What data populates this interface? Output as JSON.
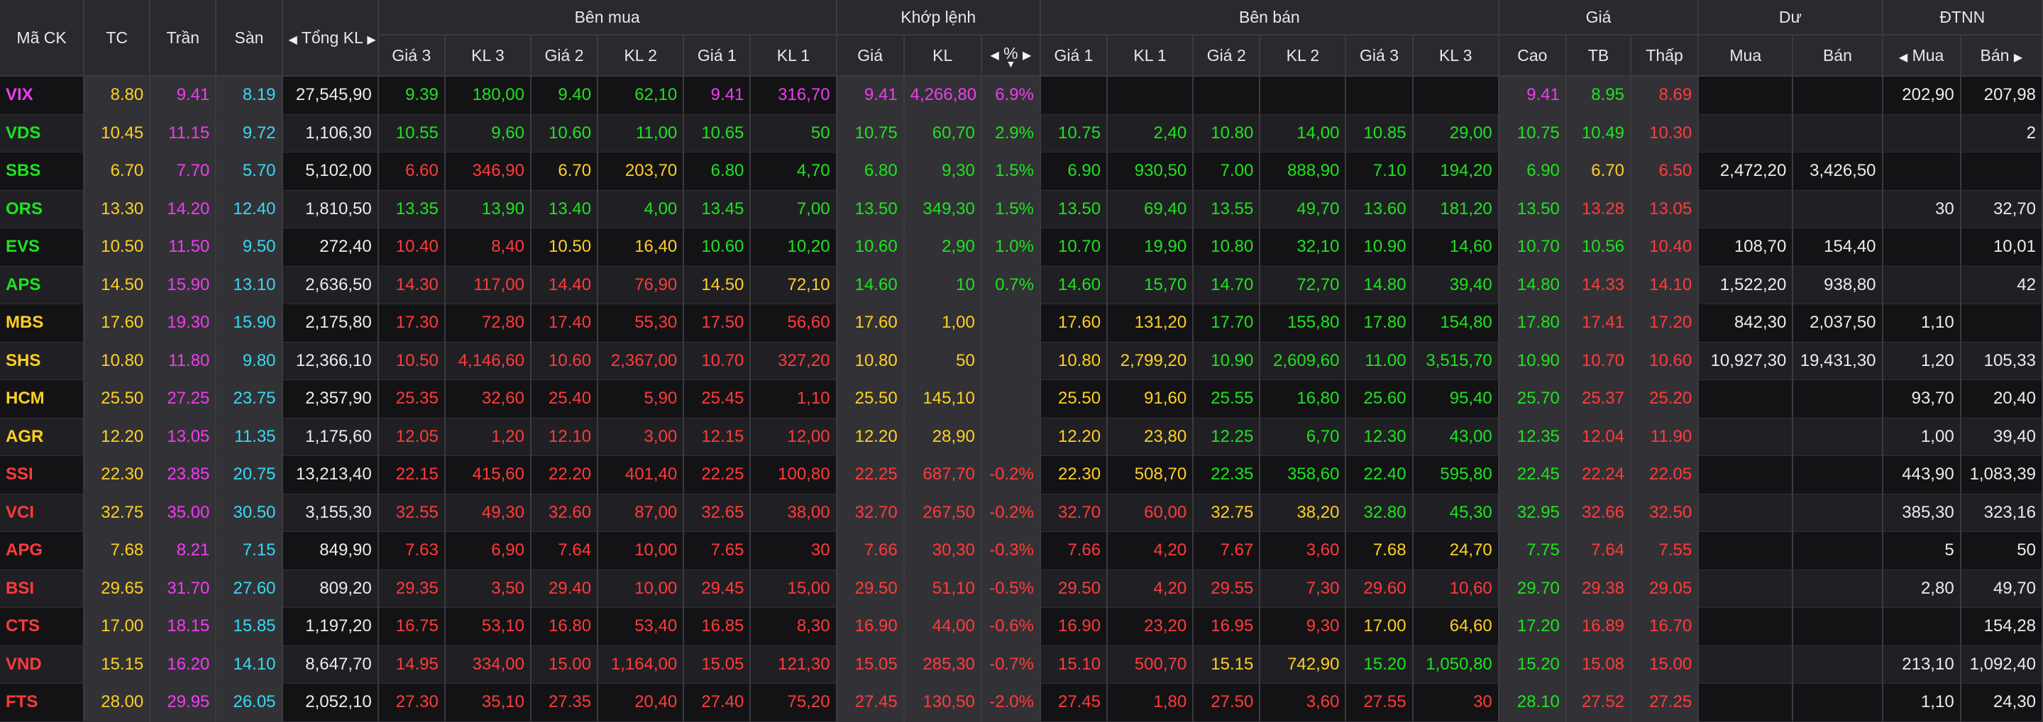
{
  "header": {
    "groups": {
      "symbol": "Mã CK",
      "ref": "TC",
      "ceil": "Trần",
      "floor": "Sàn",
      "total_vol": "Tổng KL",
      "buy": "Bên mua",
      "match": "Khớp lệnh",
      "sell": "Bên bán",
      "price": "Giá",
      "remain": "Dư",
      "foreign": "ĐTNN"
    },
    "buy_cols": [
      "Giá 3",
      "KL 3",
      "Giá 2",
      "KL 2",
      "Giá 1",
      "KL 1"
    ],
    "match_cols": [
      "Giá",
      "KL",
      "%"
    ],
    "sell_cols": [
      "Giá 1",
      "KL 1",
      "Giá 2",
      "KL 2",
      "Giá 3",
      "KL 3"
    ],
    "price_cols": [
      "Cao",
      "TB",
      "Thấp"
    ],
    "remain_cols": [
      "Mua",
      "Bán"
    ],
    "foreign_cols": [
      "Mua",
      "Bán"
    ]
  },
  "colors": {
    "up": "#1ee31e",
    "down": "#ff3b3b",
    "ref": "#ffcf24",
    "ceiling": "#f03cf0",
    "floor": "#38d8f0"
  },
  "rows": [
    {
      "symbol": "VIX",
      "ref": "8.80",
      "ceil": "9.41",
      "floor": "8.19",
      "total": "27,545,90",
      "buy": [
        "9.39",
        "180,00",
        "9.40",
        "62,10",
        "9.41",
        "316,70"
      ],
      "match": [
        "9.41",
        "4,266,80",
        "6.9%"
      ],
      "sell": [
        "",
        "",
        "",
        "",
        "",
        ""
      ],
      "hl": [
        "9.41",
        "8.95",
        "8.69"
      ],
      "remain": [
        "",
        ""
      ],
      "foreign": [
        "202,90",
        "207,98"
      ],
      "c": {
        "sym": "purple",
        "buy": [
          "green",
          "green",
          "green",
          "green",
          "purple",
          "purple"
        ],
        "match": [
          "purple",
          "purple",
          "purple"
        ],
        "sell": [
          "white",
          "white",
          "white",
          "white",
          "white",
          "white"
        ],
        "hl": [
          "purple",
          "green",
          "red"
        ]
      }
    },
    {
      "symbol": "VDS",
      "ref": "10.45",
      "ceil": "11.15",
      "floor": "9.72",
      "total": "1,106,30",
      "buy": [
        "10.55",
        "9,60",
        "10.60",
        "11,00",
        "10.65",
        "50"
      ],
      "match": [
        "10.75",
        "60,70",
        "2.9%"
      ],
      "sell": [
        "10.75",
        "2,40",
        "10.80",
        "14,00",
        "10.85",
        "29,00"
      ],
      "hl": [
        "10.75",
        "10.49",
        "10.30"
      ],
      "remain": [
        "",
        ""
      ],
      "foreign": [
        "",
        "2"
      ],
      "c": {
        "sym": "green",
        "buy": [
          "green",
          "green",
          "green",
          "green",
          "green",
          "green"
        ],
        "match": [
          "green",
          "green",
          "green"
        ],
        "sell": [
          "green",
          "green",
          "green",
          "green",
          "green",
          "green"
        ],
        "hl": [
          "green",
          "green",
          "red"
        ]
      }
    },
    {
      "symbol": "SBS",
      "ref": "6.70",
      "ceil": "7.70",
      "floor": "5.70",
      "total": "5,102,00",
      "buy": [
        "6.60",
        "346,90",
        "6.70",
        "203,70",
        "6.80",
        "4,70"
      ],
      "match": [
        "6.80",
        "9,30",
        "1.5%"
      ],
      "sell": [
        "6.90",
        "930,50",
        "7.00",
        "888,90",
        "7.10",
        "194,20"
      ],
      "hl": [
        "6.90",
        "6.70",
        "6.50"
      ],
      "remain": [
        "2,472,20",
        "3,426,50"
      ],
      "foreign": [
        "",
        ""
      ],
      "c": {
        "sym": "green",
        "buy": [
          "red",
          "red",
          "yellow",
          "yellow",
          "green",
          "green"
        ],
        "match": [
          "green",
          "green",
          "green"
        ],
        "sell": [
          "green",
          "green",
          "green",
          "green",
          "green",
          "green"
        ],
        "hl": [
          "green",
          "yellow",
          "red"
        ]
      }
    },
    {
      "symbol": "ORS",
      "ref": "13.30",
      "ceil": "14.20",
      "floor": "12.40",
      "total": "1,810,50",
      "buy": [
        "13.35",
        "13,90",
        "13.40",
        "4,00",
        "13.45",
        "7,00"
      ],
      "match": [
        "13.50",
        "349,30",
        "1.5%"
      ],
      "sell": [
        "13.50",
        "69,40",
        "13.55",
        "49,70",
        "13.60",
        "181,20"
      ],
      "hl": [
        "13.50",
        "13.28",
        "13.05"
      ],
      "remain": [
        "",
        ""
      ],
      "foreign": [
        "30",
        "32,70"
      ],
      "c": {
        "sym": "green",
        "buy": [
          "green",
          "green",
          "green",
          "green",
          "green",
          "green"
        ],
        "match": [
          "green",
          "green",
          "green"
        ],
        "sell": [
          "green",
          "green",
          "green",
          "green",
          "green",
          "green"
        ],
        "hl": [
          "green",
          "red",
          "red"
        ]
      }
    },
    {
      "symbol": "EVS",
      "ref": "10.50",
      "ceil": "11.50",
      "floor": "9.50",
      "total": "272,40",
      "buy": [
        "10.40",
        "8,40",
        "10.50",
        "16,40",
        "10.60",
        "10,20"
      ],
      "match": [
        "10.60",
        "2,90",
        "1.0%"
      ],
      "sell": [
        "10.70",
        "19,90",
        "10.80",
        "32,10",
        "10.90",
        "14,60"
      ],
      "hl": [
        "10.70",
        "10.56",
        "10.40"
      ],
      "remain": [
        "108,70",
        "154,40"
      ],
      "foreign": [
        "",
        "10,01"
      ],
      "c": {
        "sym": "green",
        "buy": [
          "red",
          "red",
          "yellow",
          "yellow",
          "green",
          "green"
        ],
        "match": [
          "green",
          "green",
          "green"
        ],
        "sell": [
          "green",
          "green",
          "green",
          "green",
          "green",
          "green"
        ],
        "hl": [
          "green",
          "green",
          "red"
        ]
      }
    },
    {
      "symbol": "APS",
      "ref": "14.50",
      "ceil": "15.90",
      "floor": "13.10",
      "total": "2,636,50",
      "buy": [
        "14.30",
        "117,00",
        "14.40",
        "76,90",
        "14.50",
        "72,10"
      ],
      "match": [
        "14.60",
        "10",
        "0.7%"
      ],
      "sell": [
        "14.60",
        "15,70",
        "14.70",
        "72,70",
        "14.80",
        "39,40"
      ],
      "hl": [
        "14.80",
        "14.33",
        "14.10"
      ],
      "remain": [
        "1,522,20",
        "938,80"
      ],
      "foreign": [
        "",
        "42"
      ],
      "c": {
        "sym": "green",
        "buy": [
          "red",
          "red",
          "red",
          "red",
          "yellow",
          "yellow"
        ],
        "match": [
          "green",
          "green",
          "green"
        ],
        "sell": [
          "green",
          "green",
          "green",
          "green",
          "green",
          "green"
        ],
        "hl": [
          "green",
          "red",
          "red"
        ]
      }
    },
    {
      "symbol": "MBS",
      "ref": "17.60",
      "ceil": "19.30",
      "floor": "15.90",
      "total": "2,175,80",
      "buy": [
        "17.30",
        "72,80",
        "17.40",
        "55,30",
        "17.50",
        "56,60"
      ],
      "match": [
        "17.60",
        "1,00",
        ""
      ],
      "sell": [
        "17.60",
        "131,20",
        "17.70",
        "155,80",
        "17.80",
        "154,80"
      ],
      "hl": [
        "17.80",
        "17.41",
        "17.20"
      ],
      "remain": [
        "842,30",
        "2,037,50"
      ],
      "foreign": [
        "1,10",
        ""
      ],
      "c": {
        "sym": "yellow",
        "buy": [
          "red",
          "red",
          "red",
          "red",
          "red",
          "red"
        ],
        "match": [
          "yellow",
          "yellow",
          "yellow"
        ],
        "sell": [
          "yellow",
          "yellow",
          "green",
          "green",
          "green",
          "green"
        ],
        "hl": [
          "green",
          "red",
          "red"
        ]
      }
    },
    {
      "symbol": "SHS",
      "ref": "10.80",
      "ceil": "11.80",
      "floor": "9.80",
      "total": "12,366,10",
      "buy": [
        "10.50",
        "4,146,60",
        "10.60",
        "2,367,00",
        "10.70",
        "327,20"
      ],
      "match": [
        "10.80",
        "50",
        ""
      ],
      "sell": [
        "10.80",
        "2,799,20",
        "10.90",
        "2,609,60",
        "11.00",
        "3,515,70"
      ],
      "hl": [
        "10.90",
        "10.70",
        "10.60"
      ],
      "remain": [
        "10,927,30",
        "19,431,30"
      ],
      "foreign": [
        "1,20",
        "105,33"
      ],
      "c": {
        "sym": "yellow",
        "buy": [
          "red",
          "red",
          "red",
          "red",
          "red",
          "red"
        ],
        "match": [
          "yellow",
          "yellow",
          "yellow"
        ],
        "sell": [
          "yellow",
          "yellow",
          "green",
          "green",
          "green",
          "green"
        ],
        "hl": [
          "green",
          "red",
          "red"
        ]
      }
    },
    {
      "symbol": "HCM",
      "ref": "25.50",
      "ceil": "27.25",
      "floor": "23.75",
      "total": "2,357,90",
      "buy": [
        "25.35",
        "32,60",
        "25.40",
        "5,90",
        "25.45",
        "1,10"
      ],
      "match": [
        "25.50",
        "145,10",
        ""
      ],
      "sell": [
        "25.50",
        "91,60",
        "25.55",
        "16,80",
        "25.60",
        "95,40"
      ],
      "hl": [
        "25.70",
        "25.37",
        "25.20"
      ],
      "remain": [
        "",
        ""
      ],
      "foreign": [
        "93,70",
        "20,40"
      ],
      "c": {
        "sym": "yellow",
        "buy": [
          "red",
          "red",
          "red",
          "red",
          "red",
          "red"
        ],
        "match": [
          "yellow",
          "yellow",
          "yellow"
        ],
        "sell": [
          "yellow",
          "yellow",
          "green",
          "green",
          "green",
          "green"
        ],
        "hl": [
          "green",
          "red",
          "red"
        ]
      }
    },
    {
      "symbol": "AGR",
      "ref": "12.20",
      "ceil": "13.05",
      "floor": "11.35",
      "total": "1,175,60",
      "buy": [
        "12.05",
        "1,20",
        "12.10",
        "3,00",
        "12.15",
        "12,00"
      ],
      "match": [
        "12.20",
        "28,90",
        ""
      ],
      "sell": [
        "12.20",
        "23,80",
        "12.25",
        "6,70",
        "12.30",
        "43,00"
      ],
      "hl": [
        "12.35",
        "12.04",
        "11.90"
      ],
      "remain": [
        "",
        ""
      ],
      "foreign": [
        "1,00",
        "39,40"
      ],
      "c": {
        "sym": "yellow",
        "buy": [
          "red",
          "red",
          "red",
          "red",
          "red",
          "red"
        ],
        "match": [
          "yellow",
          "yellow",
          "yellow"
        ],
        "sell": [
          "yellow",
          "yellow",
          "green",
          "green",
          "green",
          "green"
        ],
        "hl": [
          "green",
          "red",
          "red"
        ]
      }
    },
    {
      "symbol": "SSI",
      "ref": "22.30",
      "ceil": "23.85",
      "floor": "20.75",
      "total": "13,213,40",
      "buy": [
        "22.15",
        "415,60",
        "22.20",
        "401,40",
        "22.25",
        "100,80"
      ],
      "match": [
        "22.25",
        "687,70",
        "-0.2%"
      ],
      "sell": [
        "22.30",
        "508,70",
        "22.35",
        "358,60",
        "22.40",
        "595,80"
      ],
      "hl": [
        "22.45",
        "22.24",
        "22.05"
      ],
      "remain": [
        "",
        ""
      ],
      "foreign": [
        "443,90",
        "1,083,39"
      ],
      "c": {
        "sym": "red",
        "buy": [
          "red",
          "red",
          "red",
          "red",
          "red",
          "red"
        ],
        "match": [
          "red",
          "red",
          "red"
        ],
        "sell": [
          "yellow",
          "yellow",
          "green",
          "green",
          "green",
          "green"
        ],
        "hl": [
          "green",
          "red",
          "red"
        ]
      }
    },
    {
      "symbol": "VCI",
      "ref": "32.75",
      "ceil": "35.00",
      "floor": "30.50",
      "total": "3,155,30",
      "buy": [
        "32.55",
        "49,30",
        "32.60",
        "87,00",
        "32.65",
        "38,00"
      ],
      "match": [
        "32.70",
        "267,50",
        "-0.2%"
      ],
      "sell": [
        "32.70",
        "60,00",
        "32.75",
        "38,20",
        "32.80",
        "45,30"
      ],
      "hl": [
        "32.95",
        "32.66",
        "32.50"
      ],
      "remain": [
        "",
        ""
      ],
      "foreign": [
        "385,30",
        "323,16"
      ],
      "c": {
        "sym": "red",
        "buy": [
          "red",
          "red",
          "red",
          "red",
          "red",
          "red"
        ],
        "match": [
          "red",
          "red",
          "red"
        ],
        "sell": [
          "red",
          "red",
          "yellow",
          "yellow",
          "green",
          "green"
        ],
        "hl": [
          "green",
          "red",
          "red"
        ]
      }
    },
    {
      "symbol": "APG",
      "ref": "7.68",
      "ceil": "8.21",
      "floor": "7.15",
      "total": "849,90",
      "buy": [
        "7.63",
        "6,90",
        "7.64",
        "10,00",
        "7.65",
        "30"
      ],
      "match": [
        "7.66",
        "30,30",
        "-0.3%"
      ],
      "sell": [
        "7.66",
        "4,20",
        "7.67",
        "3,60",
        "7.68",
        "24,70"
      ],
      "hl": [
        "7.75",
        "7.64",
        "7.55"
      ],
      "remain": [
        "",
        ""
      ],
      "foreign": [
        "5",
        "50"
      ],
      "c": {
        "sym": "red",
        "buy": [
          "red",
          "red",
          "red",
          "red",
          "red",
          "red"
        ],
        "match": [
          "red",
          "red",
          "red"
        ],
        "sell": [
          "red",
          "red",
          "red",
          "red",
          "yellow",
          "yellow"
        ],
        "hl": [
          "green",
          "red",
          "red"
        ]
      }
    },
    {
      "symbol": "BSI",
      "ref": "29.65",
      "ceil": "31.70",
      "floor": "27.60",
      "total": "809,20",
      "buy": [
        "29.35",
        "3,50",
        "29.40",
        "10,00",
        "29.45",
        "15,00"
      ],
      "match": [
        "29.50",
        "51,10",
        "-0.5%"
      ],
      "sell": [
        "29.50",
        "4,20",
        "29.55",
        "7,30",
        "29.60",
        "10,60"
      ],
      "hl": [
        "29.70",
        "29.38",
        "29.05"
      ],
      "remain": [
        "",
        ""
      ],
      "foreign": [
        "2,80",
        "49,70"
      ],
      "c": {
        "sym": "red",
        "buy": [
          "red",
          "red",
          "red",
          "red",
          "red",
          "red"
        ],
        "match": [
          "red",
          "red",
          "red"
        ],
        "sell": [
          "red",
          "red",
          "red",
          "red",
          "red",
          "red"
        ],
        "hl": [
          "green",
          "red",
          "red"
        ]
      }
    },
    {
      "symbol": "CTS",
      "ref": "17.00",
      "ceil": "18.15",
      "floor": "15.85",
      "total": "1,197,20",
      "buy": [
        "16.75",
        "53,10",
        "16.80",
        "53,40",
        "16.85",
        "8,30"
      ],
      "match": [
        "16.90",
        "44,00",
        "-0.6%"
      ],
      "sell": [
        "16.90",
        "23,20",
        "16.95",
        "9,30",
        "17.00",
        "64,60"
      ],
      "hl": [
        "17.20",
        "16.89",
        "16.70"
      ],
      "remain": [
        "",
        ""
      ],
      "foreign": [
        "",
        "154,28"
      ],
      "c": {
        "sym": "red",
        "buy": [
          "red",
          "red",
          "red",
          "red",
          "red",
          "red"
        ],
        "match": [
          "red",
          "red",
          "red"
        ],
        "sell": [
          "red",
          "red",
          "red",
          "red",
          "yellow",
          "yellow"
        ],
        "hl": [
          "green",
          "red",
          "red"
        ]
      }
    },
    {
      "symbol": "VND",
      "ref": "15.15",
      "ceil": "16.20",
      "floor": "14.10",
      "total": "8,647,70",
      "buy": [
        "14.95",
        "334,00",
        "15.00",
        "1,164,00",
        "15.05",
        "121,30"
      ],
      "match": [
        "15.05",
        "285,30",
        "-0.7%"
      ],
      "sell": [
        "15.10",
        "500,70",
        "15.15",
        "742,90",
        "15.20",
        "1,050,80"
      ],
      "hl": [
        "15.20",
        "15.08",
        "15.00"
      ],
      "remain": [
        "",
        ""
      ],
      "foreign": [
        "213,10",
        "1,092,40"
      ],
      "c": {
        "sym": "red",
        "buy": [
          "red",
          "red",
          "red",
          "red",
          "red",
          "red"
        ],
        "match": [
          "red",
          "red",
          "red"
        ],
        "sell": [
          "red",
          "red",
          "yellow",
          "yellow",
          "green",
          "green"
        ],
        "hl": [
          "green",
          "red",
          "red"
        ]
      }
    },
    {
      "symbol": "FTS",
      "ref": "28.00",
      "ceil": "29.95",
      "floor": "26.05",
      "total": "2,052,10",
      "buy": [
        "27.30",
        "35,10",
        "27.35",
        "20,40",
        "27.40",
        "75,20"
      ],
      "match": [
        "27.45",
        "130,50",
        "-2.0%"
      ],
      "sell": [
        "27.45",
        "1,80",
        "27.50",
        "3,60",
        "27.55",
        "30"
      ],
      "hl": [
        "28.10",
        "27.52",
        "27.25"
      ],
      "remain": [
        "",
        ""
      ],
      "foreign": [
        "1,10",
        "24,30"
      ],
      "c": {
        "sym": "red",
        "buy": [
          "red",
          "red",
          "red",
          "red",
          "red",
          "red"
        ],
        "match": [
          "red",
          "red",
          "red"
        ],
        "sell": [
          "red",
          "red",
          "red",
          "red",
          "red",
          "red"
        ],
        "hl": [
          "green",
          "red",
          "red"
        ]
      }
    }
  ]
}
